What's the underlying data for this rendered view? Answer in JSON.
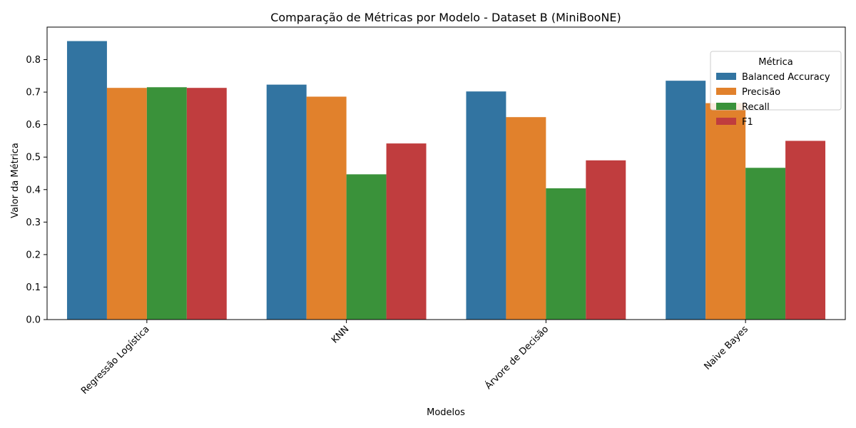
{
  "chart_data": {
    "type": "bar",
    "title": "Comparação de Métricas por Modelo - Dataset B (MiniBooNE)",
    "xlabel": "Modelos",
    "ylabel": "Valor da Métrica",
    "categories": [
      "Regressão Logística",
      "KNN",
      "Árvore de Decisão",
      "Naive Bayes"
    ],
    "series": [
      {
        "name": "Balanced Accuracy",
        "color": "#3274a1",
        "values": [
          0.857,
          0.723,
          0.702,
          0.735
        ]
      },
      {
        "name": "Precisão",
        "color": "#e1812c",
        "values": [
          0.713,
          0.686,
          0.623,
          0.666
        ]
      },
      {
        "name": "Recall",
        "color": "#3a923a",
        "values": [
          0.715,
          0.447,
          0.404,
          0.467
        ]
      },
      {
        "name": "F1",
        "color": "#c03d3e",
        "values": [
          0.713,
          0.542,
          0.49,
          0.55
        ]
      }
    ],
    "ylim": [
      0,
      0.9
    ],
    "yticks": [
      "0.0",
      "0.1",
      "0.2",
      "0.3",
      "0.4",
      "0.5",
      "0.6",
      "0.7",
      "0.8"
    ],
    "legend": {
      "title": "Métrica",
      "position": "top-right"
    },
    "grid": false
  }
}
